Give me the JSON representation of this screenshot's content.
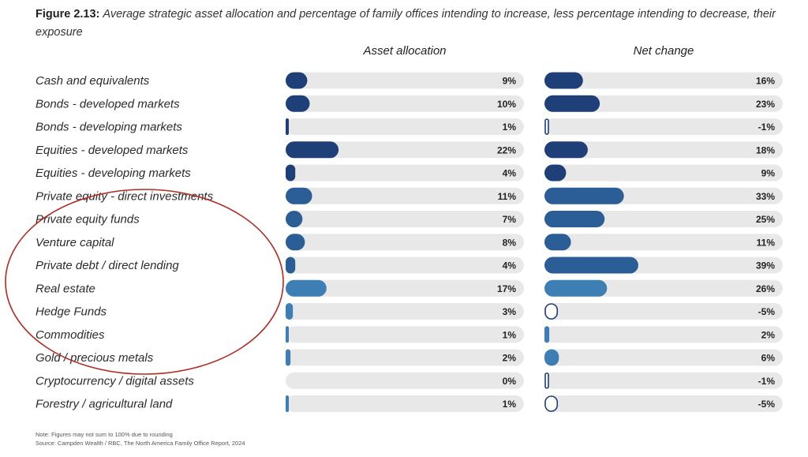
{
  "title": {
    "label": "Figure 2.13:",
    "text": "Average strategic asset allocation and percentage of family offices intending to increase, less percentage intending to decrease, their exposure"
  },
  "panels": {
    "allocation_header": "Asset allocation",
    "net_change_header": "Net change"
  },
  "notes": {
    "note": "Note: Figures may not sum to 100% due to rounding",
    "source": "Source: Campden Wealth / RBC, The North America Family Office Report, 2024"
  },
  "colors": {
    "dark_navy": "#1f3f78",
    "mid_blue": "#2b5d96",
    "light_blue": "#3d7fb4",
    "track": "#e8e8e8",
    "annotation_circle": "#b02b22"
  },
  "chart_data": {
    "type": "bar",
    "orientation": "horizontal",
    "categories": [
      "Cash and equivalents",
      "Bonds - developed markets",
      "Bonds - developing markets",
      "Equities - developed markets",
      "Equities - developing markets",
      "Private equity - direct investments",
      "Private equity funds",
      "Venture capital",
      "Private debt / direct lending",
      "Real estate",
      "Hedge Funds",
      "Commodities",
      "Gold / precious metals",
      "Cryptocurrency / digital assets",
      "Forestry / agricultural land"
    ],
    "series": [
      {
        "name": "Asset allocation",
        "values": [
          9,
          10,
          1,
          22,
          4,
          11,
          7,
          8,
          4,
          17,
          3,
          1,
          2,
          0,
          1
        ],
        "labels": [
          "9%",
          "10%",
          "1%",
          "22%",
          "4%",
          "11%",
          "7%",
          "8%",
          "4%",
          "17%",
          "3%",
          "1%",
          "2%",
          "0%",
          "1%"
        ]
      },
      {
        "name": "Net change",
        "values": [
          16,
          23,
          -1,
          18,
          9,
          33,
          25,
          11,
          39,
          26,
          -5,
          2,
          6,
          -1,
          -5
        ],
        "labels": [
          "16%",
          "23%",
          "-1%",
          "18%",
          "9%",
          "33%",
          "25%",
          "11%",
          "39%",
          "26%",
          "-5%",
          "2%",
          "6%",
          "-1%",
          "-5%"
        ]
      }
    ],
    "xlim": [
      0,
      100
    ],
    "legend": "none",
    "grid": false
  }
}
